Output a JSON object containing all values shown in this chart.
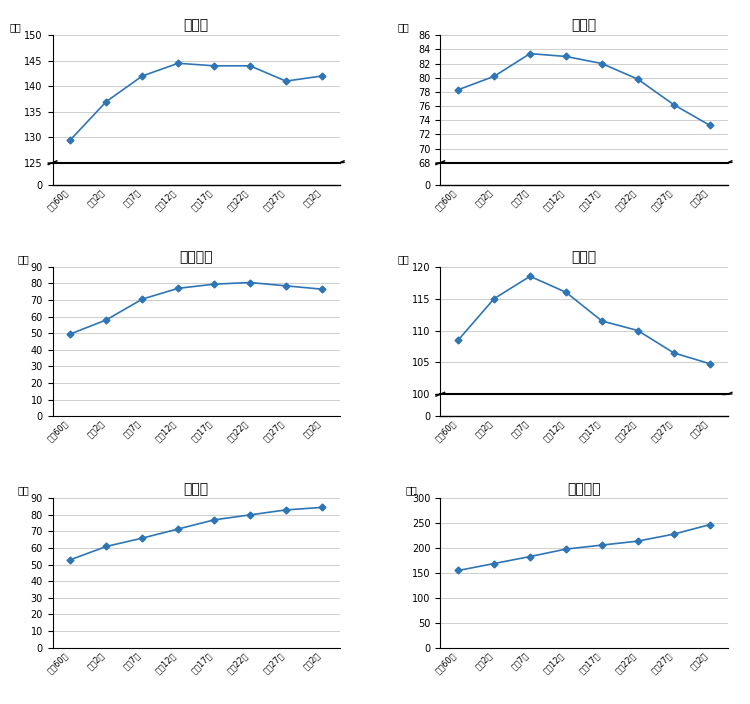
{
  "x_labels": [
    "昭和60年",
    "平成2年",
    "平成7年",
    "平成12年",
    "平成17年",
    "平成22年",
    "平成27年",
    "令和2年"
  ],
  "charts": [
    {
      "title": "土浦市",
      "values": [
        129.5,
        137.0,
        142.0,
        144.5,
        144.0,
        144.0,
        141.0,
        142.0
      ],
      "ylim_upper": [
        125,
        150
      ],
      "ylim_lower": [
        0,
        10
      ],
      "yticks_upper": [
        125,
        130,
        135,
        140,
        145,
        150
      ],
      "yticks_lower": [
        0
      ],
      "has_break": true
    },
    {
      "title": "石岡市",
      "values": [
        78.3,
        80.2,
        83.4,
        83.0,
        82.0,
        79.8,
        76.2,
        73.3
      ],
      "ylim_upper": [
        68,
        86
      ],
      "ylim_lower": [
        0,
        10
      ],
      "yticks_upper": [
        68,
        70,
        72,
        74,
        76,
        78,
        80,
        82,
        84,
        86
      ],
      "yticks_lower": [
        0
      ],
      "has_break": true
    },
    {
      "title": "龍ケ崎市",
      "values": [
        49.5,
        58.0,
        70.5,
        77.0,
        79.5,
        80.5,
        78.5,
        76.5
      ],
      "ylim_upper": [
        0,
        90
      ],
      "ylim_lower": null,
      "yticks_upper": [
        0,
        10,
        20,
        30,
        40,
        50,
        60,
        70,
        80,
        90
      ],
      "yticks_lower": null,
      "has_break": false
    },
    {
      "title": "取手市",
      "values": [
        108.5,
        115.0,
        118.5,
        116.0,
        111.5,
        110.0,
        106.5,
        104.8
      ],
      "ylim_upper": [
        100,
        120
      ],
      "ylim_lower": [
        0,
        10
      ],
      "yticks_upper": [
        100,
        105,
        110,
        115,
        120
      ],
      "yticks_lower": [
        0
      ],
      "has_break": true
    },
    {
      "title": "牛久市",
      "values": [
        53.0,
        61.0,
        66.0,
        71.5,
        77.0,
        80.0,
        83.0,
        84.5
      ],
      "ylim_upper": [
        0,
        90
      ],
      "ylim_lower": null,
      "yticks_upper": [
        0,
        10,
        20,
        30,
        40,
        50,
        60,
        70,
        80,
        90
      ],
      "yticks_lower": null,
      "has_break": false
    },
    {
      "title": "つくば市",
      "values": [
        155.0,
        169.0,
        183.0,
        198.0,
        206.0,
        214.0,
        228.0,
        247.0
      ],
      "ylim_upper": [
        0,
        300
      ],
      "ylim_lower": null,
      "yticks_upper": [
        0,
        50,
        100,
        150,
        200,
        250,
        300
      ],
      "yticks_lower": null,
      "has_break": false
    }
  ],
  "line_color": "#2E75B6",
  "marker": "D",
  "marker_size": 3.5,
  "grid_color": "#BBBBBB",
  "xlabel_fontsize": 6.0,
  "ylabel_label": "千人",
  "title_fontsize": 10,
  "ytick_fontsize": 7,
  "background_color": "#FFFFFF"
}
